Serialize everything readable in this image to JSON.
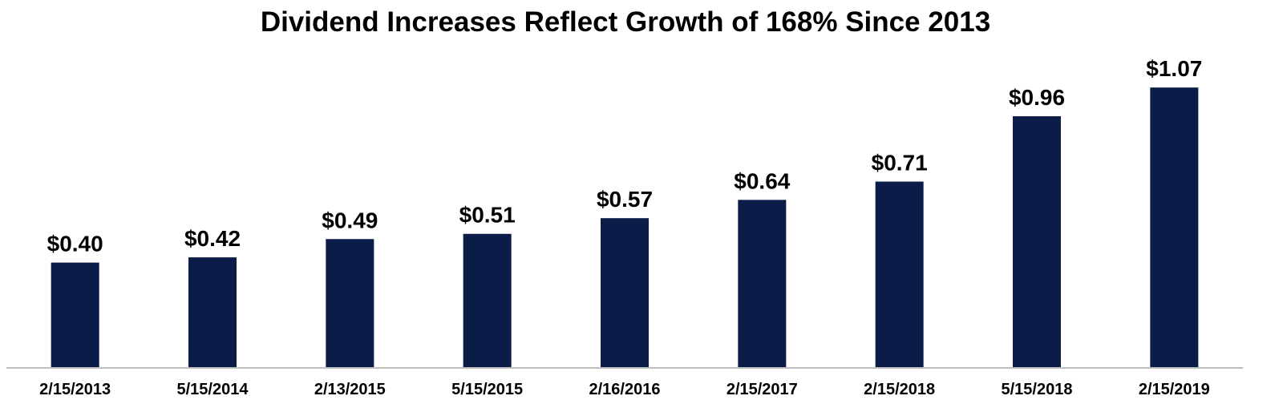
{
  "chart_data": {
    "type": "bar",
    "title": "Dividend Increases Reflect Growth of 168% Since 2013",
    "xlabel": "",
    "ylabel": "",
    "categories": [
      "2/15/2013",
      "5/15/2014",
      "2/13/2015",
      "5/15/2015",
      "2/16/2016",
      "2/15/2017",
      "2/15/2018",
      "5/15/2018",
      "2/15/2019"
    ],
    "values": [
      0.4,
      0.42,
      0.49,
      0.51,
      0.57,
      0.64,
      0.71,
      0.96,
      1.07
    ],
    "data_labels": [
      "$0.40",
      "$0.42",
      "$0.49",
      "$0.51",
      "$0.57",
      "$0.64",
      "$0.71",
      "$0.96",
      "$1.07"
    ],
    "ylim": [
      0,
      1.2
    ],
    "grid": false,
    "legend": "none",
    "bar_color": "#0a1c47",
    "axis_color": "#bfbfbf"
  }
}
